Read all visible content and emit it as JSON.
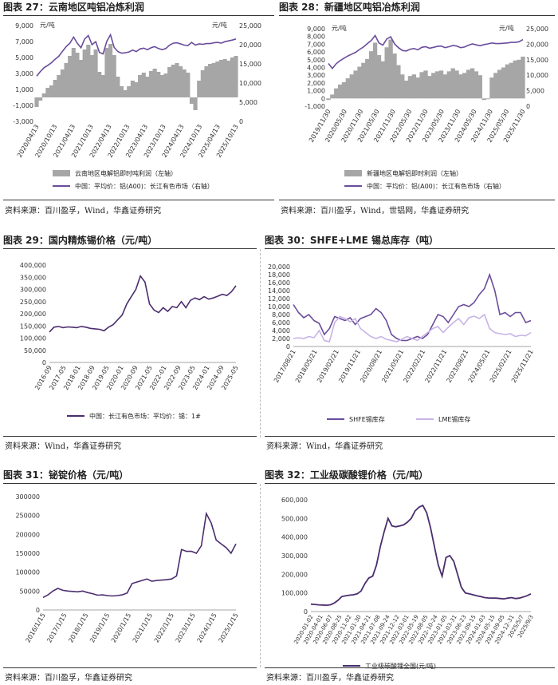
{
  "colors": {
    "purple": "#6a4c9c",
    "gray": "#a6a6a6",
    "lilac": "#c8b3e6",
    "darkpurple": "#4b2d6e"
  },
  "panels": {
    "p27": {
      "title": "图表 27：云南地区吨铝冶炼利润",
      "source": "资料来源：百川盈孚，Wind，华鑫证券研究"
    },
    "p28": {
      "title": "图表 28：新疆地区吨铝冶炼利润",
      "source": "资料来源：百川盈孚，Wind，世铝网，华鑫证券研究"
    },
    "p29": {
      "title": "图表 29：国内精炼锡价格（元/吨）",
      "source": "资料来源：Wind，华鑫证券研究"
    },
    "p30": {
      "title": "图表 30：SHFE+LME 锡总库存（吨）",
      "source": "资料来源：Wind，华鑫证券研究"
    },
    "p31": {
      "title": "图表 31：铋锭价格（元/吨）",
      "source": "资料来源：百川盈孚，华鑫证券研究"
    },
    "p32": {
      "title": "图表 32：工业级碳酸锂价格（元/吨）",
      "source": "资料来源：百川盈孚，华鑫证券研究"
    }
  },
  "chart_data": [
    {
      "id": "p27",
      "type": "area",
      "title": "云南地区吨铝冶炼利润",
      "unit_label": "元/吨",
      "left_ylim": [
        -3000,
        9000
      ],
      "left_ticks": [
        "-3,000",
        "-1,000",
        "1,000",
        "3,000",
        "5,000",
        "7,000",
        "9,000"
      ],
      "right_ylim": [
        0,
        25000
      ],
      "right_ticks": [
        "0",
        "5,000",
        "10,000",
        "15,000",
        "20,000",
        "25,000"
      ],
      "x_ticks": [
        "2020/04/13",
        "2020/10/13",
        "2021/04/13",
        "2021/10/13",
        "2022/04/13",
        "2022/10/13",
        "2023/04/13",
        "2023/10/13",
        "2024/04/13",
        "2024/10/13",
        "2025/04/13",
        "2025/10/13"
      ],
      "series": [
        {
          "name": "云南地区电解铝即时吨利润（左轴）",
          "axis": "left",
          "kind": "area",
          "values": [
            -1200,
            -400,
            500,
            1200,
            1500,
            2200,
            2800,
            3500,
            4300,
            5200,
            6200,
            5600,
            4700,
            6000,
            6600,
            5300,
            6000,
            3200,
            2800,
            6200,
            6700,
            5300,
            2600,
            1400,
            900,
            1400,
            2100,
            1900,
            2800,
            3100,
            2600,
            3300,
            3600,
            3200,
            2800,
            3000,
            3800,
            4100,
            4300,
            3900,
            3500,
            3100,
            -800,
            -1600,
            2100,
            3400,
            3900,
            4200,
            4300,
            4500,
            4700,
            4800,
            4600,
            5000,
            5200
          ]
        },
        {
          "name": "中国：平均价：铝(A00)：长江有色市场（右轴）",
          "axis": "right",
          "kind": "line",
          "values": [
            11800,
            13000,
            14000,
            14600,
            15300,
            16200,
            17000,
            18300,
            19500,
            20400,
            22000,
            20400,
            19200,
            21500,
            22400,
            20000,
            20800,
            18000,
            17600,
            20900,
            22600,
            19300,
            18200,
            17800,
            17900,
            18100,
            18600,
            18200,
            18900,
            19100,
            18700,
            19200,
            19500,
            19000,
            18700,
            19000,
            19900,
            20400,
            20500,
            20200,
            19900,
            19800,
            20600,
            19900,
            20200,
            20100,
            20300,
            20300,
            20500,
            20600,
            20400,
            20800,
            21000,
            21200,
            21500
          ]
        }
      ]
    },
    {
      "id": "p28",
      "type": "area",
      "title": "新疆地区吨铝冶炼利润",
      "unit_label": "元/吨",
      "left_ylim": [
        -1000,
        9000
      ],
      "left_ticks": [
        "-1,000",
        "0",
        "1,000",
        "2,000",
        "3,000",
        "4,000",
        "5,000",
        "6,000",
        "7,000",
        "8,000",
        "9,000"
      ],
      "right_ylim": [
        0,
        25000
      ],
      "right_ticks": [
        "0",
        "5,000",
        "10,000",
        "15,000",
        "20,000",
        "25,000"
      ],
      "x_ticks": [
        "2019/11/30",
        "2020/05/30",
        "2020/11/30",
        "2021/05/30",
        "2021/11/30",
        "2022/05/30",
        "2022/11/30",
        "2023/05/30",
        "2023/11/30",
        "2024/05/30",
        "2024/11/30",
        "2025/05/30",
        "2025/11/30"
      ],
      "series": [
        {
          "name": "新疆地区电解铝即时利润（左轴）",
          "axis": "left",
          "kind": "area",
          "values": [
            -200,
            500,
            1300,
            1800,
            2100,
            2600,
            3100,
            3600,
            4100,
            4600,
            5100,
            6100,
            7200,
            5600,
            4800,
            6600,
            7600,
            5800,
            4300,
            3100,
            2300,
            2900,
            3100,
            2700,
            3400,
            3600,
            2900,
            3300,
            3500,
            3600,
            3100,
            3500,
            3900,
            3600,
            3100,
            3300,
            3700,
            3900,
            3500,
            3000,
            -200,
            -100,
            2700,
            3300,
            3700,
            4000,
            4400,
            4600,
            4900,
            5000,
            5400
          ]
        },
        {
          "name": "中国：平均价：铝(A00)：长江有色市场（右轴）",
          "axis": "right",
          "kind": "line",
          "values": [
            13800,
            12200,
            13700,
            14700,
            15500,
            16200,
            16800,
            17400,
            18300,
            19100,
            20200,
            21200,
            22800,
            20400,
            19700,
            21700,
            22400,
            20100,
            18900,
            18000,
            17800,
            18400,
            18600,
            18200,
            19000,
            19200,
            18700,
            19000,
            19300,
            19400,
            18900,
            19200,
            19600,
            19400,
            18900,
            19100,
            19700,
            20100,
            19800,
            19500,
            19900,
            20100,
            20400,
            20200,
            20200,
            20300,
            20400,
            20600,
            20600,
            20800,
            21500
          ]
        }
      ]
    },
    {
      "id": "p29",
      "type": "line",
      "title": "国内精炼锡价格（元/吨）",
      "ylim": [
        0,
        400000
      ],
      "y_ticks": [
        "0",
        "50,000",
        "100,000",
        "150,000",
        "200,000",
        "250,000",
        "300,000",
        "350,000",
        "400,000"
      ],
      "x_ticks": [
        "2016-09",
        "2017-05",
        "2018-01",
        "2018-09",
        "2019-05",
        "2020-01",
        "2020-09",
        "2021-05",
        "2022-01",
        "2022-09",
        "2023-05",
        "2024-01",
        "2024-09",
        "2025-05"
      ],
      "series": [
        {
          "name": "中国：长江有色市场：平均价：锡：1#",
          "values": [
            125000,
            145000,
            148000,
            143000,
            146000,
            145000,
            143000,
            148000,
            145000,
            140000,
            138000,
            136000,
            130000,
            145000,
            155000,
            175000,
            195000,
            240000,
            270000,
            300000,
            355000,
            330000,
            240000,
            215000,
            205000,
            225000,
            210000,
            230000,
            225000,
            250000,
            225000,
            255000,
            265000,
            258000,
            270000,
            260000,
            265000,
            272000,
            280000,
            275000,
            290000,
            315000
          ]
        }
      ]
    },
    {
      "id": "p30",
      "type": "line",
      "title": "SHFE+LME 锡总库存（吨）",
      "ylim": [
        0,
        20000
      ],
      "y_ticks": [
        "0",
        "2,000",
        "4,000",
        "6,000",
        "8,000",
        "10,000",
        "12,000",
        "14,000",
        "16,000",
        "18,000",
        "20,000"
      ],
      "x_ticks": [
        "2017/08/21",
        "2018/05/21",
        "2019/02/21",
        "2019/11/21",
        "2020/08/21",
        "2021/05/21",
        "2022/02/21",
        "2022/11/21",
        "2023/08/21",
        "2024/05/21",
        "2025/02/21",
        "2025/11/21"
      ],
      "series": [
        {
          "name": "SHFE锡库存",
          "values": [
            10500,
            8500,
            7200,
            8000,
            6500,
            5800,
            3000,
            4500,
            7500,
            7000,
            6500,
            7200,
            5500,
            7000,
            7500,
            8000,
            9500,
            8500,
            6500,
            3000,
            2000,
            1500,
            1500,
            2000,
            2500,
            2000,
            3000,
            5500,
            8000,
            7500,
            6000,
            8000,
            10000,
            10500,
            10000,
            11000,
            13000,
            14500,
            18000,
            14000,
            8000,
            8500,
            7500,
            8500,
            8500,
            6000,
            6500
          ]
        },
        {
          "name": "LME锡库存",
          "values": [
            2000,
            2200,
            2000,
            2500,
            2200,
            4000,
            1500,
            1200,
            6000,
            7500,
            7000,
            6200,
            7000,
            4500,
            3500,
            2500,
            2000,
            2500,
            1800,
            1500,
            1200,
            1800,
            2500,
            2000,
            1500,
            2500,
            3500,
            4500,
            5000,
            3500,
            4800,
            6000,
            7000,
            5500,
            7200,
            7600,
            7000,
            8000,
            4500,
            3500,
            3200,
            3000,
            3200,
            2500,
            2800,
            2700,
            3500
          ]
        }
      ]
    },
    {
      "id": "p31",
      "type": "line",
      "title": "铋锭价格（元/吨）",
      "ylim": [
        0,
        300000
      ],
      "y_ticks": [
        "0",
        "50000",
        "100000",
        "150000",
        "200000",
        "250000",
        "300000"
      ],
      "x_ticks": [
        "2016/1/15",
        "2017/1/15",
        "2018/1/15",
        "2019/1/15",
        "2020/1/15",
        "2021/1/15",
        "2022/1/15",
        "2023/1/15",
        "2024/1/15",
        "2025/1/15"
      ],
      "series": [
        {
          "name": "铋锭价格",
          "values": [
            33000,
            40000,
            50000,
            57000,
            52000,
            50000,
            49000,
            48000,
            50000,
            46000,
            43000,
            39000,
            40000,
            38000,
            37000,
            38000,
            40000,
            45000,
            70000,
            74000,
            78000,
            82000,
            76000,
            78000,
            79000,
            80000,
            82000,
            90000,
            160000,
            155000,
            155000,
            150000,
            170000,
            255000,
            230000,
            185000,
            175000,
            165000,
            150000,
            175000
          ]
        }
      ]
    },
    {
      "id": "p32",
      "type": "line",
      "title": "工业级碳酸锂价格（元/吨）",
      "ylim": [
        0,
        600000
      ],
      "y_ticks": [
        "0",
        "100,000",
        "200,000",
        "300,000",
        "400,000",
        "500,000",
        "600,000"
      ],
      "x_ticks": [
        "2020-01-02",
        "2020-04-01",
        "2020-06-07",
        "2020-08-25",
        "2020-11-02",
        "2021-01-30",
        "2021-04-21",
        "2021-07-08",
        "2021-09-24",
        "2021-12-12",
        "2022-03-01",
        "2022-05-19",
        "2022-08-05",
        "2022-10-24",
        "2023-01-05",
        "2023-03-31",
        "2023-06-23",
        "2023-09-15",
        "2024-01-03",
        "2024-05-15",
        "2024-09-05",
        "2024-12-31",
        "2025/5/7",
        "2025/9/3"
      ],
      "series": [
        {
          "name": "工业级碳酸锂全国(元/吨)",
          "values": [
            40000,
            38000,
            36000,
            35000,
            34000,
            36000,
            45000,
            60000,
            80000,
            85000,
            88000,
            90000,
            95000,
            110000,
            150000,
            180000,
            190000,
            250000,
            350000,
            430000,
            500000,
            460000,
            455000,
            460000,
            465000,
            480000,
            500000,
            540000,
            560000,
            570000,
            530000,
            450000,
            350000,
            250000,
            190000,
            290000,
            300000,
            270000,
            200000,
            130000,
            100000,
            95000,
            90000,
            85000,
            80000,
            75000,
            73000,
            72000,
            72000,
            70000,
            68000,
            72000,
            75000,
            70000,
            72000,
            78000,
            85000,
            95000
          ]
        }
      ]
    }
  ]
}
